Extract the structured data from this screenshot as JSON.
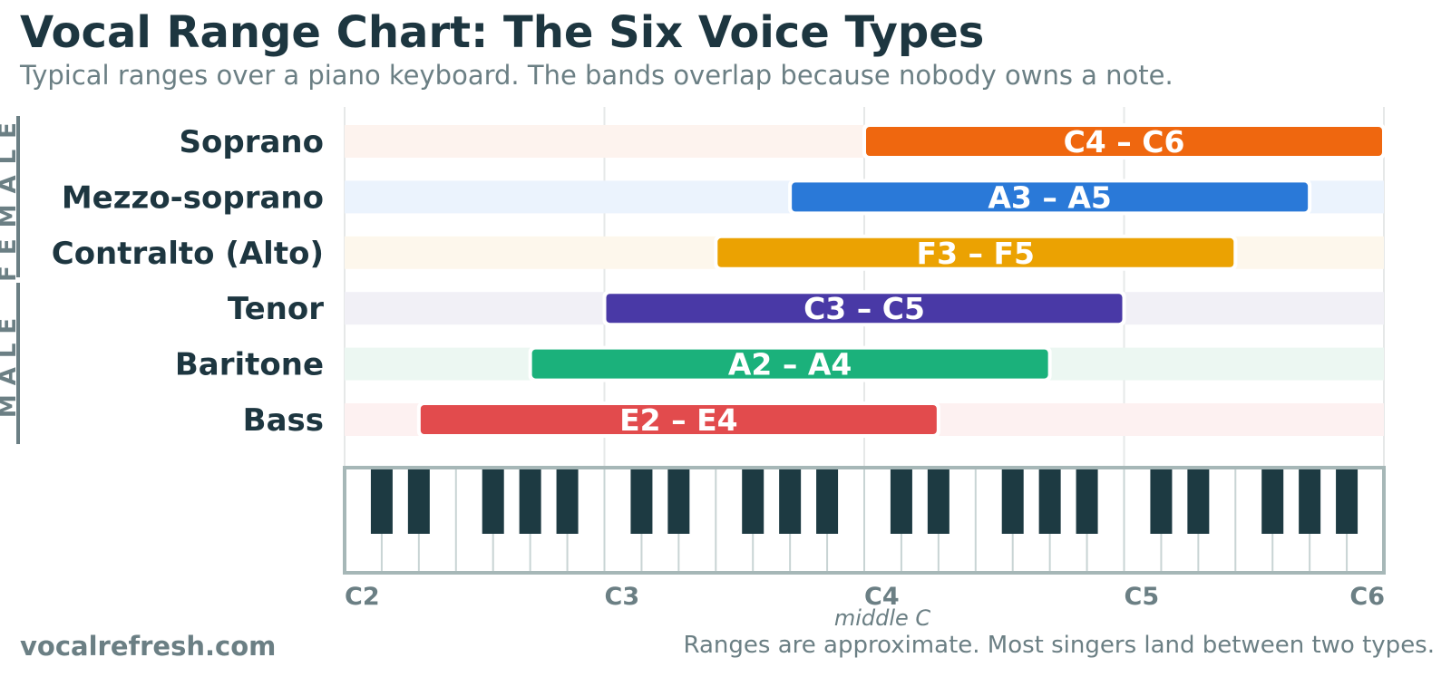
{
  "header": {
    "title": "Vocal Range Chart: The Six Voice Types",
    "subtitle": "Typical ranges over a piano keyboard. The bands overlap because nobody owns a note."
  },
  "footer": {
    "site": "vocalrefresh.com",
    "note": "Ranges are approximate. Most singers land between two types."
  },
  "chart_data": {
    "type": "bar",
    "subtype": "floating-range",
    "x_axis": {
      "unit": "white-key index from C2",
      "min_note": "C2",
      "max_note": "C6",
      "ticks": [
        "C2",
        "C3",
        "C4",
        "C5",
        "C6"
      ],
      "annotation": {
        "note": "C4",
        "text": "middle C"
      },
      "grid": true
    },
    "group_labels": [
      {
        "label": "FEMALE",
        "members": [
          "Soprano",
          "Mezzo-soprano",
          "Contralto (Alto)"
        ]
      },
      {
        "label": "MALE",
        "members": [
          "Tenor",
          "Baritone",
          "Bass"
        ]
      }
    ],
    "series": [
      {
        "name": "Soprano",
        "low": "C4",
        "high": "C6",
        "label": "C4 – C6",
        "color": "#ef670f",
        "track_color": "#fdf3ee"
      },
      {
        "name": "Mezzo-soprano",
        "low": "A3",
        "high": "A5",
        "label": "A3 – A5",
        "color": "#2a79d8",
        "track_color": "#ebf3fd"
      },
      {
        "name": "Contralto (Alto)",
        "low": "F3",
        "high": "F5",
        "label": "F3 – F5",
        "color": "#eba202",
        "track_color": "#fdf7ec"
      },
      {
        "name": "Tenor",
        "low": "C3",
        "high": "C5",
        "label": "C3 – C5",
        "color": "#4939a6",
        "track_color": "#f1f0f6"
      },
      {
        "name": "Baritone",
        "low": "A2",
        "high": "A4",
        "label": "A2 – A4",
        "color": "#1bb17b",
        "track_color": "#ecf7f2"
      },
      {
        "name": "Bass",
        "low": "E2",
        "high": "E4",
        "label": "E2 – E4",
        "color": "#e24b4d",
        "track_color": "#fdf1f1"
      }
    ],
    "colors": {
      "text_dark": "#1d3640",
      "text_muted": "#6b7f84",
      "keyboard_border": "#a6b7b7",
      "black_key": "#1d3a42",
      "grid": "#e6e8e8"
    }
  }
}
